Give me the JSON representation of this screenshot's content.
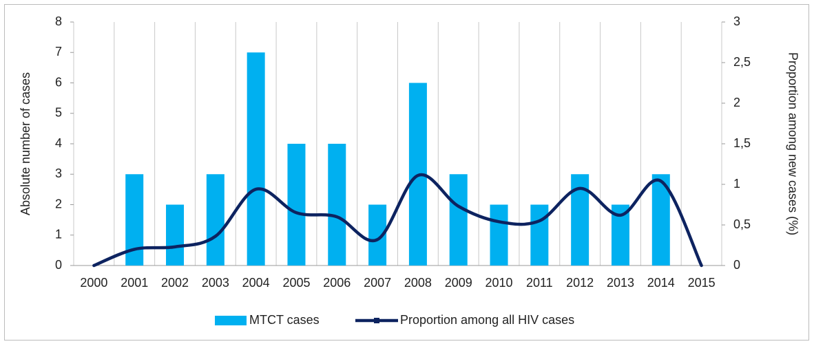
{
  "chart_data": {
    "type": "bar_line",
    "categories": [
      "2000",
      "2001",
      "2002",
      "2003",
      "2004",
      "2005",
      "2006",
      "2007",
      "2008",
      "2009",
      "2010",
      "2011",
      "2012",
      "2013",
      "2014",
      "2015"
    ],
    "series": [
      {
        "name": "MTCT cases",
        "type": "bar",
        "color": "#00b0f0",
        "values": [
          0,
          3,
          2,
          3,
          7,
          4,
          4,
          2,
          6,
          3,
          2,
          2,
          3,
          2,
          3,
          0
        ]
      },
      {
        "name": "Proportion among all HIV cases",
        "type": "line",
        "axis": "y2",
        "color": "#0d2360",
        "values": [
          0,
          0.2,
          0.23,
          0.36,
          0.94,
          0.65,
          0.6,
          0.32,
          1.11,
          0.73,
          0.54,
          0.55,
          0.95,
          0.62,
          1.04,
          0
        ]
      }
    ],
    "ylabel": "Absolute number of cases",
    "y2label": "Proportion among new cases (%)",
    "ylim": [
      0,
      8
    ],
    "yticks": [
      0,
      1,
      2,
      3,
      4,
      5,
      6,
      7,
      8
    ],
    "y2lim": [
      0,
      3
    ],
    "y2ticks": [
      0,
      {
        "value": 0.5,
        "label": "0,5"
      },
      1,
      {
        "value": 1.5,
        "label": "1,5"
      },
      2,
      {
        "value": 2.5,
        "label": "2,5"
      },
      3
    ],
    "legend": "bottom"
  }
}
